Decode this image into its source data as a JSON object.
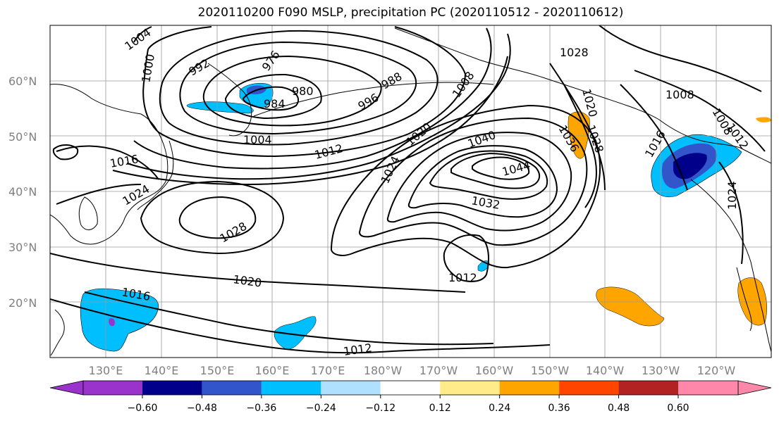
{
  "title": "2020110200 F090 MSLP, precipitation PC (2020110512 - 2020110612)",
  "map": {
    "lat_labels": [
      "60°N",
      "50°N",
      "40°N",
      "30°N",
      "20°N"
    ],
    "lon_labels": [
      "130°E",
      "140°E",
      "150°E",
      "160°E",
      "170°E",
      "180°W",
      "170°W",
      "160°W",
      "150°W",
      "140°W",
      "130°W",
      "120°W"
    ]
  },
  "contours": {
    "labels": [
      {
        "id": "l1004a",
        "text": "1004"
      },
      {
        "id": "l1000",
        "text": "1000"
      },
      {
        "id": "l992",
        "text": "992"
      },
      {
        "id": "l976",
        "text": "976"
      },
      {
        "id": "l980",
        "text": "980"
      },
      {
        "id": "l984",
        "text": "984"
      },
      {
        "id": "l988",
        "text": "988"
      },
      {
        "id": "l996",
        "text": "996"
      },
      {
        "id": "l1004b",
        "text": "1004"
      },
      {
        "id": "l1008a",
        "text": "1008"
      },
      {
        "id": "l1012a",
        "text": "1012"
      },
      {
        "id": "l1020a",
        "text": "1020"
      },
      {
        "id": "l1016a",
        "text": "1016"
      },
      {
        "id": "l1024a",
        "text": "1024"
      },
      {
        "id": "l1024b",
        "text": "1024"
      },
      {
        "id": "l1040",
        "text": "1040"
      },
      {
        "id": "l1044",
        "text": "1044"
      },
      {
        "id": "l1032",
        "text": "1032"
      },
      {
        "id": "l1036",
        "text": "1036"
      },
      {
        "id": "l1028a",
        "text": "1028"
      },
      {
        "id": "l1028b",
        "text": "1028"
      },
      {
        "id": "l1028c",
        "text": "1028"
      },
      {
        "id": "l1020b",
        "text": "1020"
      },
      {
        "id": "l1008b",
        "text": "1008"
      },
      {
        "id": "l1016b",
        "text": "1016"
      },
      {
        "id": "l1012b",
        "text": "1012"
      },
      {
        "id": "l1024c",
        "text": "1024"
      },
      {
        "id": "l1012c",
        "text": "1012"
      },
      {
        "id": "l1020c",
        "text": "1020"
      },
      {
        "id": "l1016c",
        "text": "1016"
      },
      {
        "id": "l1012d",
        "text": "1012"
      },
      {
        "id": "l1008c",
        "text": "1008"
      }
    ]
  },
  "colorbar": {
    "ticks": [
      "−0.60",
      "−0.48",
      "−0.36",
      "−0.24",
      "−0.12",
      "0.12",
      "0.24",
      "0.36",
      "0.48",
      "0.60"
    ],
    "colors": [
      "#9933cc",
      "#00008b",
      "#3355cc",
      "#00bfff",
      "#b0e0ff",
      "#ffffff",
      "#ffeb8a",
      "#ffa500",
      "#ff4500",
      "#b22222",
      "#ff88aa"
    ]
  }
}
